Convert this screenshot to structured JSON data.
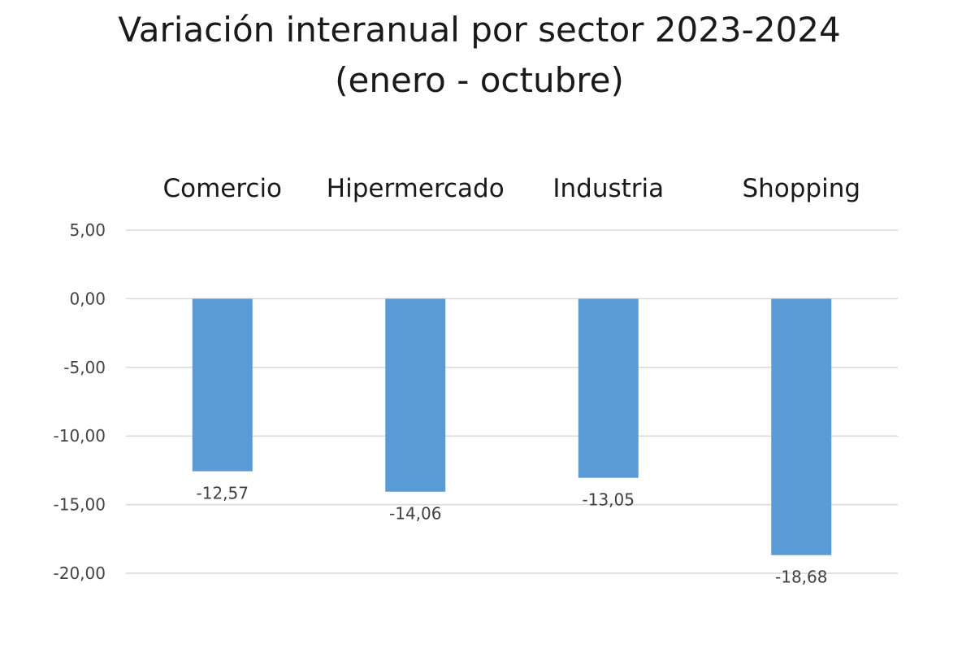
{
  "chart_data": {
    "type": "bar",
    "title": [
      "Variación interanual por sector 2023-2024",
      "(enero - octubre)"
    ],
    "categories": [
      "Comercio",
      "Hipermercado",
      "Industria",
      "Shopping"
    ],
    "values": [
      -12.57,
      -14.06,
      -13.05,
      -18.68
    ],
    "data_labels": [
      "-12,57",
      "-14,06",
      "-13,05",
      "-18,68"
    ],
    "yticks": [
      5,
      0,
      -5,
      -10,
      -15,
      -20
    ],
    "ytick_labels": [
      "5,00",
      "0,00",
      "-5,00",
      "-10,00",
      "-15,00",
      "-20,00"
    ],
    "ylim": [
      -20,
      5
    ],
    "xlabel": "",
    "ylabel": "",
    "grid": true,
    "category_labels_position": "top",
    "bar_color": "#5b9bd5",
    "grid_color": "#d9d9d9"
  }
}
